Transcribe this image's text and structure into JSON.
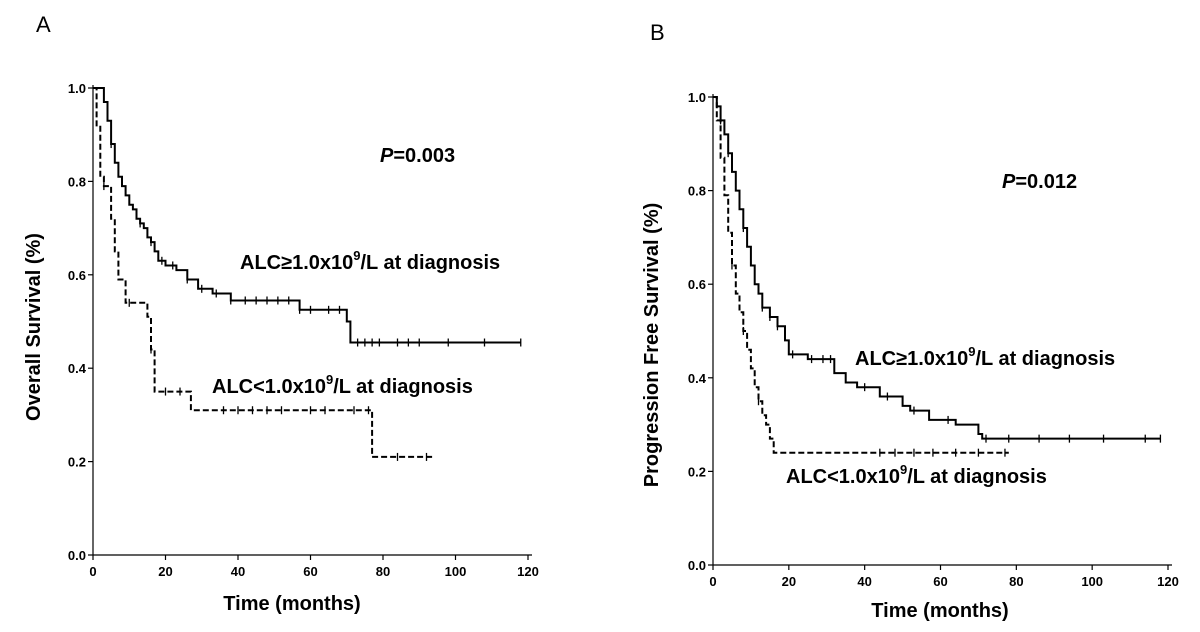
{
  "figure": {
    "panels": [
      {
        "letter": "A",
        "xlabel": "Time (months)",
        "ylabel": "Overall Survival (%)",
        "p_italic": "P",
        "p_value": "=0.003",
        "curve_labels": [
          {
            "pre": "ALC≥1.0x10",
            "sup": "9",
            "post": "/L at diagnosis"
          },
          {
            "pre": "ALC<1.0x10",
            "sup": "9",
            "post": "/L at diagnosis"
          }
        ]
      },
      {
        "letter": "B",
        "xlabel": "Time (months)",
        "ylabel": "Progression Free  Survival (%)",
        "p_italic": "P",
        "p_value": "=0.012",
        "curve_labels": [
          {
            "pre": "ALC≥1.0x10",
            "sup": "9",
            "post": "/L at diagnosis"
          },
          {
            "pre": "ALC<1.0x10",
            "sup": "9",
            "post": "/L at diagnosis"
          }
        ]
      }
    ]
  },
  "chart_data": [
    {
      "type": "line",
      "step": true,
      "title": "",
      "xlabel": "Time (months)",
      "ylabel": "Overall Survival (%)",
      "xlim": [
        0,
        120
      ],
      "ylim": [
        0,
        1.0
      ],
      "xticks": [
        0,
        20,
        40,
        60,
        80,
        100,
        120
      ],
      "yticks": [
        0.0,
        0.2,
        0.4,
        0.6,
        0.8,
        1.0
      ],
      "annotation": "P=0.003",
      "series": [
        {
          "name": "ALC≥1.0x10⁹/L at diagnosis",
          "style": "solid",
          "x": [
            0,
            3,
            4,
            5,
            6,
            7,
            8,
            9,
            10,
            11,
            12,
            13,
            14,
            15,
            16,
            17,
            18,
            20,
            23,
            26,
            29,
            33,
            38,
            57,
            70,
            71,
            118
          ],
          "y": [
            1.0,
            0.97,
            0.93,
            0.88,
            0.84,
            0.81,
            0.79,
            0.77,
            0.75,
            0.74,
            0.72,
            0.71,
            0.7,
            0.68,
            0.67,
            0.65,
            0.63,
            0.62,
            0.61,
            0.59,
            0.57,
            0.56,
            0.545,
            0.525,
            0.5,
            0.455,
            0.455
          ],
          "censored_x": [
            5,
            13,
            16,
            19,
            22,
            26,
            30,
            34,
            38,
            42,
            45,
            48,
            51,
            54,
            57,
            60,
            65,
            68,
            73,
            75,
            77,
            79,
            84,
            87,
            90,
            98,
            108,
            118
          ]
        },
        {
          "name": "ALC<1.0x10⁹/L at diagnosis",
          "style": "dashed",
          "x": [
            0,
            1,
            2,
            3,
            5,
            6,
            7,
            9,
            15,
            16,
            17,
            27,
            76,
            77,
            94
          ],
          "y": [
            1.0,
            0.92,
            0.81,
            0.79,
            0.72,
            0.65,
            0.59,
            0.54,
            0.51,
            0.44,
            0.35,
            0.31,
            0.31,
            0.21,
            0.21
          ],
          "censored_x": [
            3,
            10,
            16,
            20,
            24,
            36,
            40,
            44,
            48,
            52,
            60,
            64,
            72,
            76,
            84,
            92
          ]
        }
      ]
    },
    {
      "type": "line",
      "step": true,
      "title": "",
      "xlabel": "Time (months)",
      "ylabel": "Progression Free  Survival (%)",
      "xlim": [
        0,
        120
      ],
      "ylim": [
        0,
        1.0
      ],
      "xticks": [
        0,
        20,
        40,
        60,
        80,
        100,
        120
      ],
      "yticks": [
        0.0,
        0.2,
        0.4,
        0.6,
        0.8,
        1.0
      ],
      "annotation": "P=0.012",
      "series": [
        {
          "name": "ALC≥1.0x10⁹/L at diagnosis",
          "style": "solid",
          "x": [
            0,
            1,
            2,
            3,
            4,
            5,
            6,
            7,
            8,
            9,
            10,
            11,
            12,
            13,
            15,
            17,
            19,
            20,
            25,
            32,
            35,
            38,
            44,
            50,
            52,
            57,
            64,
            70,
            71,
            118
          ],
          "y": [
            1.0,
            0.98,
            0.95,
            0.92,
            0.88,
            0.84,
            0.8,
            0.76,
            0.72,
            0.68,
            0.64,
            0.6,
            0.58,
            0.55,
            0.53,
            0.51,
            0.48,
            0.45,
            0.44,
            0.41,
            0.39,
            0.38,
            0.36,
            0.34,
            0.33,
            0.31,
            0.3,
            0.28,
            0.27,
            0.27
          ],
          "censored_x": [
            2,
            4,
            8,
            13,
            15,
            17,
            21,
            26,
            29,
            31,
            40,
            46,
            53,
            62,
            72,
            78,
            86,
            94,
            103,
            114,
            118
          ]
        },
        {
          "name": "ALC<1.0x10⁹/L at diagnosis",
          "style": "dashed",
          "x": [
            0,
            1,
            2,
            3,
            4,
            5,
            6,
            7,
            8,
            9,
            10,
            11,
            12,
            13,
            14,
            15,
            16,
            78
          ],
          "y": [
            1.0,
            0.95,
            0.87,
            0.79,
            0.71,
            0.64,
            0.58,
            0.54,
            0.5,
            0.46,
            0.42,
            0.38,
            0.35,
            0.32,
            0.3,
            0.27,
            0.24,
            0.24
          ],
          "censored_x": [
            5,
            8,
            12,
            44,
            48,
            53,
            58,
            64,
            70,
            77
          ]
        }
      ]
    }
  ]
}
